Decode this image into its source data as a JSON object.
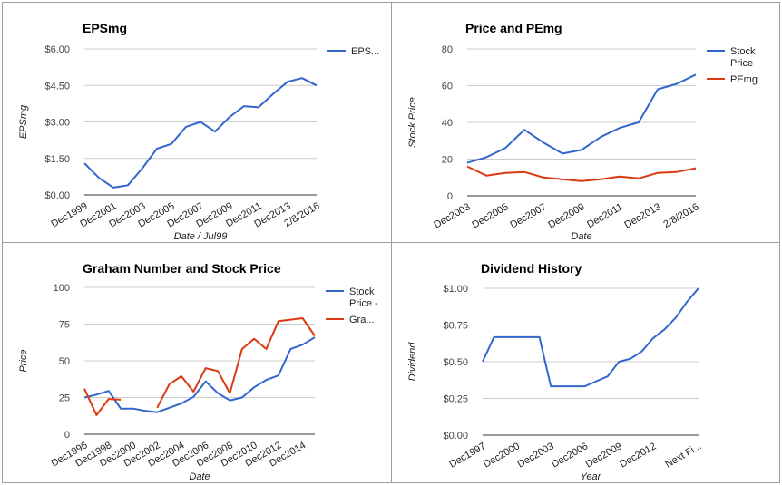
{
  "chart_data": [
    {
      "type": "line",
      "title": "EPSmg",
      "xlabel": "Date / Jul99",
      "ylabel": "EPSmg",
      "ylim": [
        0,
        6
      ],
      "yticks": [
        "$0.00",
        "$1.50",
        "$3.00",
        "$4.50",
        "$6.00"
      ],
      "ytick_values": [
        0,
        1.5,
        3,
        4.5,
        6
      ],
      "categories": [
        "Dec1999",
        "Dec2000",
        "Dec2001",
        "Dec2002",
        "Dec2003",
        "Dec2004",
        "Dec2005",
        "Dec2006",
        "Dec2007",
        "Dec2008",
        "Dec2009",
        "Dec2010",
        "Dec2011",
        "Dec2012",
        "Dec2013",
        "Dec2014",
        "2/8/2016"
      ],
      "xticks": [
        "Dec1999",
        "Dec2001",
        "Dec2003",
        "Dec2005",
        "Dec2007",
        "Dec2009",
        "Dec2011",
        "Dec2013",
        "2/8/2016"
      ],
      "xtick_index": [
        0,
        2,
        4,
        6,
        8,
        10,
        12,
        14,
        16
      ],
      "grid": true,
      "legend": "right",
      "series": [
        {
          "name": "EPS...",
          "color": "#3366cc",
          "values": [
            1.3,
            0.7,
            0.3,
            0.4,
            1.1,
            1.9,
            2.1,
            2.8,
            3.0,
            2.6,
            3.2,
            3.65,
            3.6,
            4.15,
            4.65,
            4.8,
            4.5
          ]
        }
      ]
    },
    {
      "type": "line",
      "title": "Price and PEmg",
      "xlabel": "Date",
      "ylabel": "Stock Price",
      "ylim": [
        0,
        80
      ],
      "yticks": [
        "0",
        "20",
        "40",
        "60",
        "80"
      ],
      "ytick_values": [
        0,
        20,
        40,
        60,
        80
      ],
      "categories": [
        "Dec2003",
        "Dec2004",
        "Dec2005",
        "Dec2006",
        "Dec2007",
        "Dec2008",
        "Dec2009",
        "Dec2010",
        "Dec2011",
        "Dec2012",
        "Dec2013",
        "Dec2014",
        "2/8/2016"
      ],
      "xticks": [
        "Dec2003",
        "Dec2005",
        "Dec2007",
        "Dec2009",
        "Dec2011",
        "Dec2013",
        "2/8/2016"
      ],
      "xtick_index": [
        0,
        2,
        4,
        6,
        8,
        10,
        12
      ],
      "grid": true,
      "legend": "right",
      "series": [
        {
          "name": "Stock Price",
          "label_lines": [
            "Stock",
            "Price"
          ],
          "color": "#3366cc",
          "values": [
            18,
            21,
            26,
            36,
            29,
            23,
            25,
            32,
            37,
            40,
            58,
            61,
            66
          ]
        },
        {
          "name": "PEmg",
          "label_lines": [
            "PEmg"
          ],
          "color": "#dc3912",
          "values": [
            16,
            11,
            12.5,
            13,
            10,
            9,
            8,
            9,
            10.5,
            9.5,
            12.5,
            13,
            15
          ]
        }
      ]
    },
    {
      "type": "line",
      "title": "Graham Number and Stock Price",
      "xlabel": "Date",
      "ylabel": "Price",
      "ylim": [
        0,
        100
      ],
      "yticks": [
        "0",
        "25",
        "50",
        "75",
        "100"
      ],
      "ytick_values": [
        0,
        25,
        50,
        75,
        100
      ],
      "categories": [
        "Dec1996",
        "Dec1997",
        "Dec1998",
        "Dec1999",
        "Dec2000",
        "Dec2001",
        "Dec2002",
        "Dec2003",
        "Dec2004",
        "Dec2005",
        "Dec2006",
        "Dec2007",
        "Dec2008",
        "Dec2009",
        "Dec2010",
        "Dec2011",
        "Dec2012",
        "Dec2013",
        "Dec2014",
        "Feb2016"
      ],
      "xticks": [
        "Dec1996",
        "Dec1998",
        "Dec2000",
        "Dec2002",
        "Dec2004",
        "Dec2006",
        "Dec2008",
        "Dec2010",
        "Dec2012",
        "Dec2014"
      ],
      "xtick_index": [
        0,
        2,
        4,
        6,
        8,
        10,
        12,
        14,
        16,
        18
      ],
      "grid": true,
      "legend": "right",
      "series": [
        {
          "name": "Stock Price -",
          "label_lines": [
            "Stock",
            "Price -"
          ],
          "color": "#3366cc",
          "values": [
            25,
            27,
            29.5,
            17.5,
            17.5,
            16,
            15,
            18,
            21,
            25.5,
            36,
            28,
            23,
            25,
            32,
            37,
            40,
            58,
            61,
            66
          ]
        },
        {
          "name": "Gra...",
          "label_lines": [
            "Gra..."
          ],
          "color": "#dc3912",
          "values": [
            31,
            13,
            24,
            23.5,
            null,
            null,
            18,
            34,
            39.5,
            29,
            45,
            43,
            28,
            58,
            65,
            58,
            77,
            78,
            79,
            67
          ]
        }
      ]
    },
    {
      "type": "line",
      "title": "Dividend History",
      "xlabel": "Year",
      "ylabel": "Dividend",
      "ylim": [
        0,
        1
      ],
      "yticks": [
        "$0.00",
        "$0.25",
        "$0.50",
        "$0.75",
        "$1.00"
      ],
      "ytick_values": [
        0,
        0.25,
        0.5,
        0.75,
        1.0
      ],
      "categories": [
        "Dec1997",
        "Dec1998",
        "Dec1999",
        "Dec2000",
        "Dec2001",
        "Dec2002",
        "Dec2003",
        "Dec2004",
        "Dec2005",
        "Dec2006",
        "Dec2007",
        "Dec2008",
        "Dec2009",
        "Dec2010",
        "Dec2011",
        "Dec2012",
        "Dec2013",
        "Dec2014",
        "Dec2015",
        "Next Fi..."
      ],
      "xticks": [
        "Dec1997",
        "Dec2000",
        "Dec2003",
        "Dec2006",
        "Dec2009",
        "Dec2012",
        "Next Fi..."
      ],
      "xtick_index": [
        0,
        3,
        6,
        9,
        12,
        15,
        19
      ],
      "grid": true,
      "legend": "none",
      "series": [
        {
          "name": "Dividend",
          "color": "#3366cc",
          "values": [
            0.5,
            0.667,
            0.667,
            0.667,
            0.667,
            0.667,
            0.333,
            0.333,
            0.333,
            0.333,
            0.367,
            0.4,
            0.5,
            0.52,
            0.57,
            0.66,
            0.72,
            0.8,
            0.91,
            1.0
          ]
        }
      ]
    }
  ]
}
